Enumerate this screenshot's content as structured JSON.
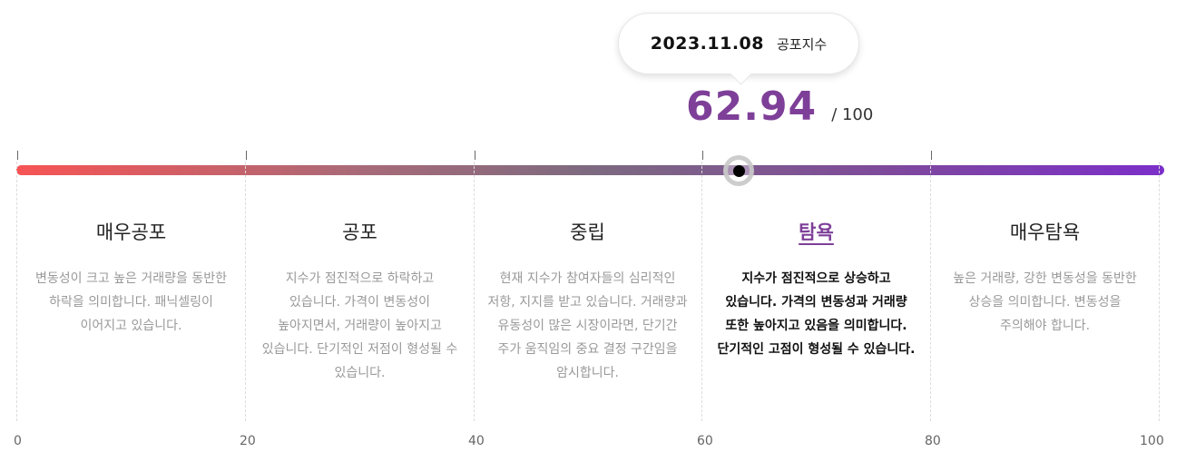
{
  "tooltip": {
    "date": "2023.11.08",
    "label": "공포지수"
  },
  "score": {
    "value": "62.94",
    "max": "/ 100",
    "value_numeric": 62.94,
    "color": "#7e3f98"
  },
  "gauge": {
    "min": 0,
    "max": 100,
    "colors": [
      "#f75454",
      "#7b2fc9"
    ]
  },
  "segments": [
    {
      "title": "매우공포",
      "desc": "변동성이 크고 높은 거래량을 동반한 하락을 의미합니다. 패닉셀링이 이어지고 있습니다.",
      "active": false
    },
    {
      "title": "공포",
      "desc": "지수가 점진적으로 하락하고 있습니다. 가격이 변동성이 높아지면서, 거래량이 높아지고 있습니다. 단기적인 저점이 형성될 수 있습니다.",
      "active": false
    },
    {
      "title": "중립",
      "desc": "현재 지수가 참여자들의 심리적인 저항, 지지를 받고 있습니다. 거래량과 유동성이 많은 시장이라면, 단기간 주가 움직임의 중요 결정 구간임을 암시합니다.",
      "active": false
    },
    {
      "title": "탐욕",
      "desc": "지수가 점진적으로 상승하고 있습니다. 가격의 변동성과 거래량 또한 높아지고 있음을 의미합니다. 단기적인 고점이 형성될 수 있습니다.",
      "active": true
    },
    {
      "title": "매우탐욕",
      "desc": "높은 거래량, 강한 변동성을 동반한 상승을 의미합니다. 변동성을 주의해야 합니다.",
      "active": false
    }
  ],
  "axis_labels": [
    "0",
    "20",
    "40",
    "60",
    "80",
    "100"
  ]
}
